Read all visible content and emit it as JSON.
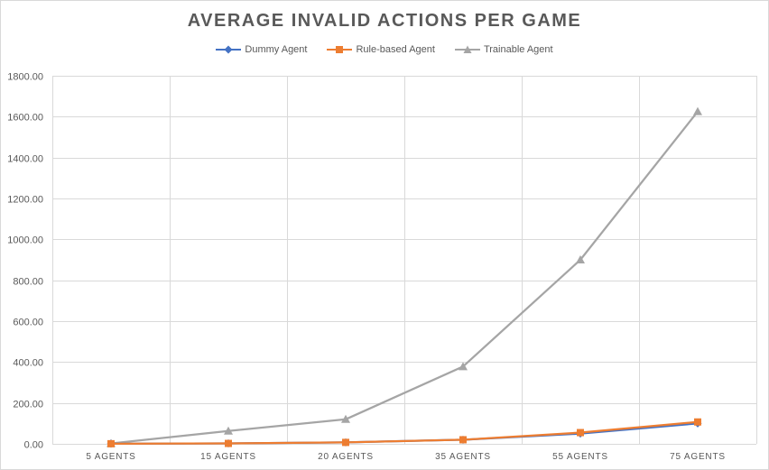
{
  "chart_data": {
    "type": "line",
    "title": "AVERAGE INVALID ACTIONS PER GAME",
    "xlabel": "",
    "ylabel": "",
    "categories": [
      "5 AGENTS",
      "15 AGENTS",
      "20 AGENTS",
      "35 AGENTS",
      "55 AGENTS",
      "75 AGENTS"
    ],
    "yticks": [
      "0.00",
      "200.00",
      "400.00",
      "600.00",
      "800.00",
      "1000.00",
      "1200.00",
      "1400.00",
      "1600.00",
      "1800.00"
    ],
    "ylim": [
      0,
      1800
    ],
    "grid": true,
    "legend_position": "top",
    "series": [
      {
        "name": "Dummy Agent",
        "color": "#4472c4",
        "marker": "diamond",
        "values": [
          0.5,
          2,
          7,
          20,
          50,
          100
        ]
      },
      {
        "name": "Rule-based Agent",
        "color": "#ed7d31",
        "marker": "square",
        "values": [
          0.5,
          2,
          7,
          20,
          55,
          107
        ]
      },
      {
        "name": "Trainable Agent",
        "color": "#a5a5a5",
        "marker": "triangle",
        "values": [
          2,
          63,
          120,
          378,
          900,
          1625
        ]
      }
    ]
  }
}
